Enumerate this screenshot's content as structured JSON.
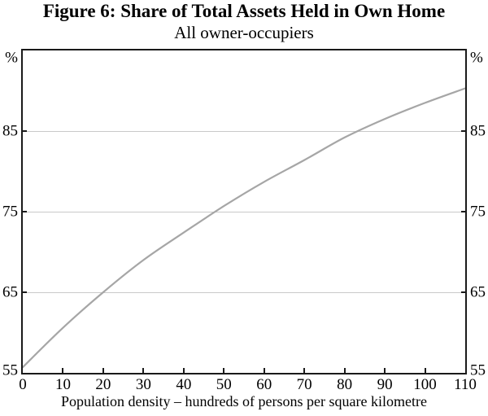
{
  "figure": {
    "title": "Figure 6: Share of Total Assets Held in Own Home",
    "subtitle": "All owner-occupiers"
  },
  "chart_data": {
    "type": "line",
    "title": "Figure 6: Share of Total Assets Held in Own Home",
    "subtitle": "All owner-occupiers",
    "xlabel": "Population density – hundreds of persons per square kilometre",
    "ylabel_left": "%",
    "ylabel_right": "%",
    "x": [
      0,
      10,
      20,
      30,
      40,
      50,
      60,
      70,
      80,
      90,
      100,
      110
    ],
    "series": [
      {
        "name": "Share of total assets held in own home",
        "values": [
          55.7,
          60.6,
          65.0,
          69.0,
          72.4,
          75.7,
          78.7,
          81.4,
          84.2,
          86.5,
          88.5,
          90.3
        ]
      }
    ],
    "xlim": [
      0,
      110
    ],
    "ylim": [
      55,
      95
    ],
    "xticks": [
      0,
      10,
      20,
      30,
      40,
      50,
      60,
      70,
      80,
      90,
      100,
      110
    ],
    "yticks_labeled": [
      85,
      75,
      65,
      55
    ],
    "grid": "horizontal",
    "legend": "none",
    "colors": {
      "line": "#a6a6a6",
      "grid": "#c9c9c9",
      "axis": "#1a1a1a",
      "text": "#000000"
    }
  }
}
